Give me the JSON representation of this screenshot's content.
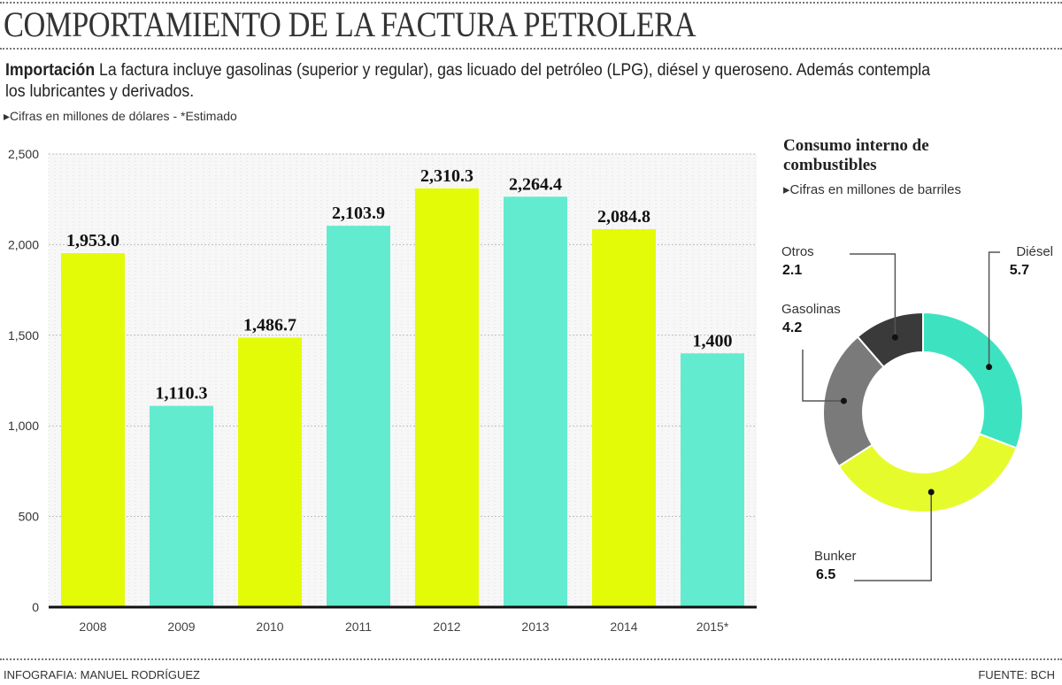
{
  "header": {
    "title": "COMPORTAMIENTO DE LA FACTURA PETROLERA",
    "intro_bold": "Importación",
    "intro_text": " La factura  incluye gasolinas (superior y regular), gas licuado del petróleo (LPG), diésel y queroseno. Además contempla  los lubricantes y derivados.",
    "note": "▸Cifras en millones de dólares - *Estimado"
  },
  "chart_data": [
    {
      "type": "bar",
      "categories": [
        "2008",
        "2009",
        "2010",
        "2011",
        "2012",
        "2013",
        "2014",
        "2015*"
      ],
      "values": [
        1953.0,
        1110.3,
        1486.7,
        2103.9,
        2310.3,
        2264.4,
        2084.8,
        1400
      ],
      "data_labels": [
        "1,953.0",
        "1,110.3",
        "1,486.7",
        "2,103.9",
        "2,310.3",
        "2,264.4",
        "2,084.8",
        "1,400"
      ],
      "colors": [
        "#e4fb07",
        "#63ebcf",
        "#e4fb07",
        "#63ebcf",
        "#e4fb07",
        "#63ebcf",
        "#e4fb07",
        "#63ebcf"
      ],
      "ylim": [
        0,
        2500
      ],
      "yticks": [
        0,
        500,
        1000,
        1500,
        2000,
        2500
      ],
      "ytick_labels": [
        "0",
        "500",
        "1,000",
        "1,500",
        "2,000",
        "2,500"
      ],
      "grid": true
    },
    {
      "type": "pie",
      "donut": true,
      "title": "Consumo interno de combustibles",
      "subtitle": "▸Cifras en millones de barriles",
      "slices": [
        {
          "label": "Diésel",
          "value": 5.7,
          "value_label": "5.7",
          "color": "#3de3c0"
        },
        {
          "label": "Bunker",
          "value": 6.5,
          "value_label": "6.5",
          "color": "#e6fb2c"
        },
        {
          "label": "Gasolinas",
          "value": 4.2,
          "value_label": "4.2",
          "color": "#7a7a7a"
        },
        {
          "label": "Otros",
          "value": 2.1,
          "value_label": "2.1",
          "color": "#3a3a3a"
        }
      ]
    }
  ],
  "footer": {
    "credit": "INFOGRAFIA: MANUEL RODRÍGUEZ",
    "source": "FUENTE: BCH"
  }
}
